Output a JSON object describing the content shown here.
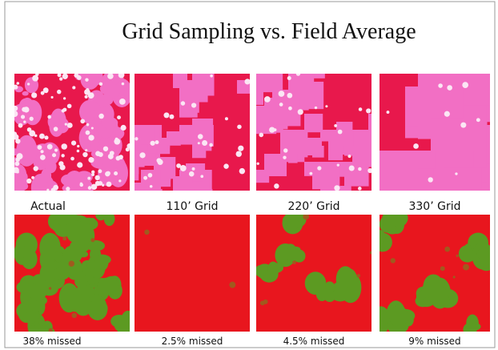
{
  "title": "Grid Sampling vs. Field Average",
  "top_row": [
    {
      "label": "Actual"
    },
    {
      "label": "110’ Grid"
    },
    {
      "label": "220’ Grid"
    },
    {
      "label": "330’ Grid"
    }
  ],
  "bottom_row": [
    {
      "label": "38% missed"
    },
    {
      "label": "2.5% missed"
    },
    {
      "label": "4.5% missed"
    },
    {
      "label": "9% missed"
    }
  ]
}
